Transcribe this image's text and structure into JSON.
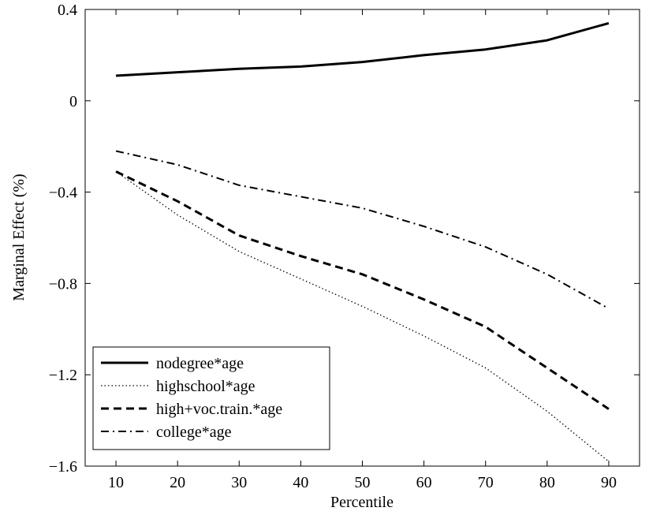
{
  "chart_data": {
    "type": "line",
    "xlabel": "Percentile",
    "ylabel": "Marginal Effect (%)",
    "x": [
      10,
      20,
      30,
      40,
      50,
      60,
      70,
      80,
      90
    ],
    "xlim": [
      5,
      95
    ],
    "ylim": [
      -1.6,
      0.4
    ],
    "xticks": [
      10,
      20,
      30,
      40,
      50,
      60,
      70,
      80,
      90
    ],
    "yticks": [
      0.4,
      0,
      -0.4,
      -0.8,
      -1.2,
      -1.6
    ],
    "ytick_labels": [
      "0.4",
      "0",
      "−0.4",
      "−0.8",
      "−1.2",
      "−1.6"
    ],
    "grid": false,
    "legend_position": "bottom-left",
    "series": [
      {
        "name": "nodegree*age",
        "style": "solid",
        "values": [
          0.11,
          0.125,
          0.14,
          0.15,
          0.17,
          0.2,
          0.225,
          0.265,
          0.34
        ]
      },
      {
        "name": "highschool*age",
        "style": "dotted",
        "values": [
          -0.31,
          -0.5,
          -0.66,
          -0.78,
          -0.9,
          -1.03,
          -1.17,
          -1.36,
          -1.58
        ]
      },
      {
        "name": "high+voc.train.*age",
        "style": "dashed",
        "values": [
          -0.31,
          -0.44,
          -0.59,
          -0.68,
          -0.76,
          -0.87,
          -0.99,
          -1.17,
          -1.35
        ]
      },
      {
        "name": "college*age",
        "style": "dashdot",
        "values": [
          -0.22,
          -0.28,
          -0.37,
          -0.42,
          -0.47,
          -0.55,
          -0.64,
          -0.76,
          -0.91
        ]
      }
    ]
  }
}
